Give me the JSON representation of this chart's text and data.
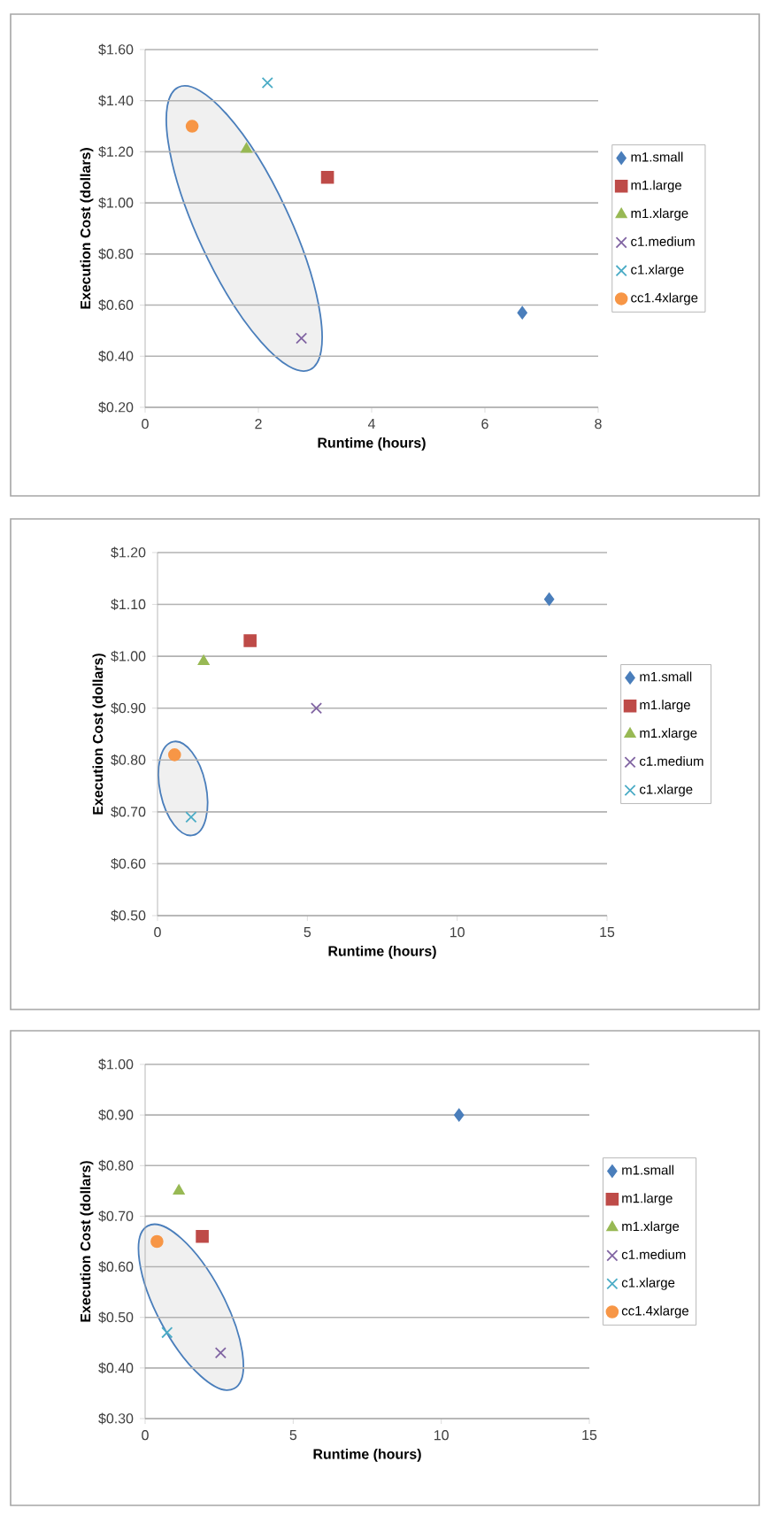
{
  "chart_data": [
    {
      "type": "scatter",
      "xlabel": "Runtime (hours)",
      "ylabel": "Execution Cost (dollars)",
      "xlim": [
        0,
        8
      ],
      "xticks": [
        0,
        2,
        4,
        6,
        8
      ],
      "ylim": [
        0.2,
        1.6
      ],
      "yticks": [
        {
          "value": 0.2,
          "label": "$0.20"
        },
        {
          "value": 0.4,
          "label": "$0.40"
        },
        {
          "value": 0.6,
          "label": "$0.60"
        },
        {
          "value": 0.8,
          "label": "$0.80"
        },
        {
          "value": 1.0,
          "label": "$1.00"
        },
        {
          "value": 1.2,
          "label": "$1.20"
        },
        {
          "value": 1.4,
          "label": "$1.40"
        },
        {
          "value": 1.6,
          "label": "$1.60"
        }
      ],
      "grid": "y",
      "legend": "right",
      "series": [
        {
          "name": "m1.small",
          "color": "#4a7ebb",
          "marker": "diamond",
          "x": [
            6.66
          ],
          "values": [
            0.57
          ]
        },
        {
          "name": "m1.large",
          "color": "#be4b48",
          "marker": "square",
          "x": [
            3.22
          ],
          "values": [
            1.1
          ]
        },
        {
          "name": "m1.xlarge",
          "color": "#98b954",
          "marker": "triangle",
          "x": [
            1.79
          ],
          "values": [
            1.21
          ]
        },
        {
          "name": "c1.medium",
          "color": "#8064a2",
          "marker": "cross",
          "x": [
            2.76
          ],
          "values": [
            0.47
          ]
        },
        {
          "name": "c1.xlarge",
          "color": "#4bacc6",
          "marker": "cross",
          "x": [
            2.16
          ],
          "values": [
            1.47
          ]
        },
        {
          "name": "cc1.4xlarge",
          "color": "#f79646",
          "marker": "circle",
          "x": [
            0.83
          ],
          "values": [
            1.3
          ]
        }
      ]
    },
    {
      "type": "scatter",
      "xlabel": "Runtime (hours)",
      "ylabel": "Execution Cost (dollars)",
      "xlim": [
        0,
        15
      ],
      "xticks": [
        0,
        5,
        10,
        15
      ],
      "ylim": [
        0.5,
        1.2
      ],
      "yticks": [
        {
          "value": 0.5,
          "label": "$0.50"
        },
        {
          "value": 0.6,
          "label": "$0.60"
        },
        {
          "value": 0.7,
          "label": "$0.70"
        },
        {
          "value": 0.8,
          "label": "$0.80"
        },
        {
          "value": 0.9,
          "label": "$0.90"
        },
        {
          "value": 1.0,
          "label": "$1.00"
        },
        {
          "value": 1.1,
          "label": "$1.10"
        },
        {
          "value": 1.2,
          "label": "$1.20"
        }
      ],
      "grid": "y",
      "legend": "right",
      "series": [
        {
          "name": "m1.small",
          "color": "#4a7ebb",
          "marker": "diamond",
          "x": [
            13.07
          ],
          "values": [
            1.11
          ]
        },
        {
          "name": "m1.large",
          "color": "#be4b48",
          "marker": "square",
          "x": [
            3.09
          ],
          "values": [
            1.03
          ]
        },
        {
          "name": "m1.xlarge",
          "color": "#98b954",
          "marker": "triangle",
          "x": [
            1.54
          ],
          "values": [
            0.99
          ]
        },
        {
          "name": "c1.medium",
          "color": "#8064a2",
          "marker": "cross",
          "x": [
            5.3
          ],
          "values": [
            0.9
          ]
        },
        {
          "name": "c1.xlarge",
          "color": "#4bacc6",
          "marker": "cross",
          "x": [
            1.12
          ],
          "values": [
            0.69
          ]
        },
        {
          "color": "#f79646",
          "marker": "circle",
          "x": [
            0.57
          ],
          "values": [
            0.81
          ]
        }
      ]
    },
    {
      "type": "scatter",
      "xlabel": "Runtime (hours)",
      "ylabel": "Execution Cost (dollars)",
      "xlim": [
        0,
        15
      ],
      "xticks": [
        0,
        5,
        10,
        15
      ],
      "ylim": [
        0.3,
        1.0
      ],
      "yticks": [
        {
          "value": 0.3,
          "label": "$0.30"
        },
        {
          "value": 0.4,
          "label": "$0.40"
        },
        {
          "value": 0.5,
          "label": "$0.50"
        },
        {
          "value": 0.6,
          "label": "$0.60"
        },
        {
          "value": 0.7,
          "label": "$0.70"
        },
        {
          "value": 0.8,
          "label": "$0.80"
        },
        {
          "value": 0.9,
          "label": "$0.90"
        },
        {
          "value": 1.0,
          "label": "$1.00"
        }
      ],
      "grid": "y",
      "legend": "right",
      "series": [
        {
          "name": "m1.small",
          "color": "#4a7ebb",
          "marker": "diamond",
          "x": [
            10.6
          ],
          "values": [
            0.9
          ]
        },
        {
          "name": "m1.large",
          "color": "#be4b48",
          "marker": "square",
          "x": [
            1.93
          ],
          "values": [
            0.66
          ]
        },
        {
          "name": "m1.xlarge",
          "color": "#98b954",
          "marker": "triangle",
          "x": [
            1.14
          ],
          "values": [
            0.75
          ]
        },
        {
          "name": "c1.medium",
          "color": "#8064a2",
          "marker": "cross",
          "x": [
            2.55
          ],
          "values": [
            0.43
          ]
        },
        {
          "name": "c1.xlarge",
          "color": "#4bacc6",
          "marker": "cross",
          "x": [
            0.74
          ],
          "values": [
            0.47
          ]
        },
        {
          "name": "cc1.4xlarge",
          "color": "#f79646",
          "marker": "circle",
          "x": [
            0.4
          ],
          "values": [
            0.65
          ]
        }
      ]
    }
  ]
}
